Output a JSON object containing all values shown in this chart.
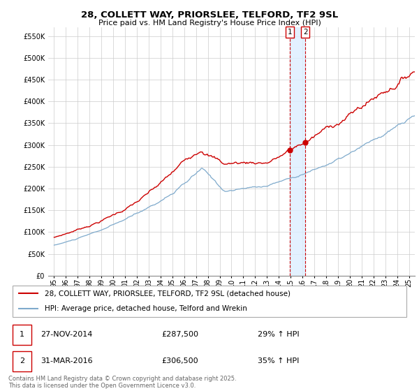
{
  "title": "28, COLLETT WAY, PRIORSLEE, TELFORD, TF2 9SL",
  "subtitle": "Price paid vs. HM Land Registry's House Price Index (HPI)",
  "red_label": "28, COLLETT WAY, PRIORSLEE, TELFORD, TF2 9SL (detached house)",
  "blue_label": "HPI: Average price, detached house, Telford and Wrekin",
  "legend1_date": "27-NOV-2014",
  "legend1_price": "£287,500",
  "legend1_hpi": "29% ↑ HPI",
  "legend2_date": "31-MAR-2016",
  "legend2_price": "£306,500",
  "legend2_hpi": "35% ↑ HPI",
  "sale1_year": 2014.91,
  "sale2_year": 2016.25,
  "sale1_price": 287500,
  "sale2_price": 306500,
  "ylim": [
    0,
    570000
  ],
  "xlim_start": 1994.5,
  "xlim_end": 2025.5,
  "background_color": "#ffffff",
  "grid_color": "#cccccc",
  "red_line_color": "#cc0000",
  "blue_line_color": "#7faacc",
  "sale_span_color": "#ddeeff",
  "yticks": [
    0,
    50000,
    100000,
    150000,
    200000,
    250000,
    300000,
    350000,
    400000,
    450000,
    500000,
    550000
  ],
  "ytick_labels": [
    "£0",
    "£50K",
    "£100K",
    "£150K",
    "£200K",
    "£250K",
    "£300K",
    "£350K",
    "£400K",
    "£450K",
    "£500K",
    "£550K"
  ],
  "xticks": [
    1995,
    1996,
    1997,
    1998,
    1999,
    2000,
    2001,
    2002,
    2003,
    2004,
    2005,
    2006,
    2007,
    2008,
    2009,
    2010,
    2011,
    2012,
    2013,
    2014,
    2015,
    2016,
    2017,
    2018,
    2019,
    2020,
    2021,
    2022,
    2023,
    2024,
    2025
  ],
  "copyright_text": "Contains HM Land Registry data © Crown copyright and database right 2025.\nThis data is licensed under the Open Government Licence v3.0."
}
